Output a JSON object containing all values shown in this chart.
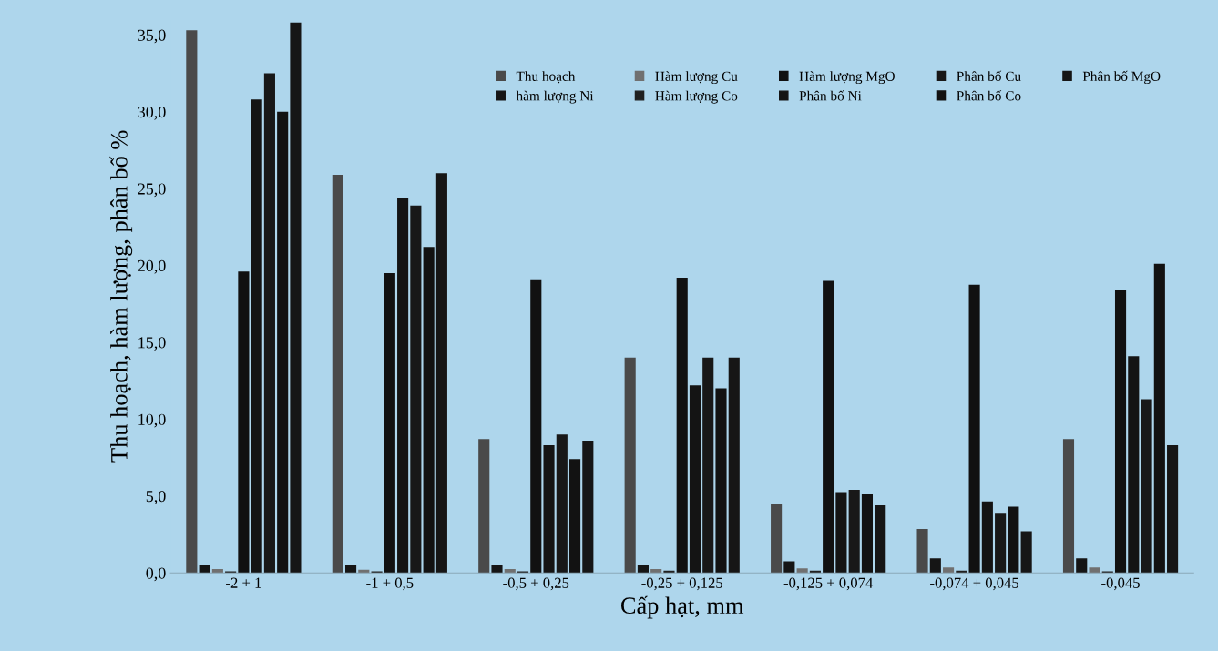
{
  "chart_data": {
    "type": "bar",
    "xlabel": "Cấp hạt, mm",
    "ylabel": "Thu hoạch, hàm lượng, phân bố %",
    "categories": [
      "-2 + 1",
      "-1 + 0,5",
      "-0,5 + 0,25",
      "-0,25 + 0,125",
      "-0,125 + 0,074",
      "-0,074 + 0,045",
      "-0,045"
    ],
    "series": [
      {
        "name": "Thu hoạch",
        "color": "#4a4a4a",
        "values": [
          35.3,
          25.9,
          8.7,
          14.0,
          4.5,
          2.85,
          8.7
        ]
      },
      {
        "name": "hàm lượng Ni",
        "color": "#151515",
        "values": [
          0.5,
          0.5,
          0.5,
          0.55,
          0.75,
          0.95,
          0.95
        ]
      },
      {
        "name": "Hàm lượng Cu",
        "color": "#707070",
        "values": [
          0.25,
          0.2,
          0.25,
          0.25,
          0.3,
          0.35,
          0.35
        ]
      },
      {
        "name": "Hàm lượng Co",
        "color": "#202020",
        "values": [
          0.1,
          0.1,
          0.1,
          0.15,
          0.15,
          0.15,
          0.1
        ]
      },
      {
        "name": "Hàm lượng MgO",
        "color": "#111111",
        "values": [
          19.6,
          19.5,
          19.1,
          19.2,
          19.0,
          18.75,
          18.4
        ]
      },
      {
        "name": "Phân bố Ni",
        "color": "#141414",
        "values": [
          30.8,
          24.4,
          8.3,
          12.2,
          5.25,
          4.65,
          14.1
        ]
      },
      {
        "name": "Phân bố Cu",
        "color": "#181818",
        "values": [
          32.5,
          23.9,
          9.0,
          14.0,
          5.4,
          3.9,
          11.3
        ]
      },
      {
        "name": "Phân bố Co",
        "color": "#121212",
        "values": [
          30.0,
          21.2,
          7.4,
          12.0,
          5.1,
          4.3,
          20.1
        ]
      },
      {
        "name": "Phân bố MgO",
        "color": "#161616",
        "values": [
          35.8,
          26.0,
          8.6,
          14.0,
          4.4,
          2.7,
          8.3
        ]
      }
    ],
    "ylim": [
      0,
      36
    ],
    "yticks": [
      {
        "value": 0,
        "label": "0,0"
      },
      {
        "value": 5,
        "label": "5,0"
      },
      {
        "value": 10,
        "label": "10,0"
      },
      {
        "value": 15,
        "label": "15,0"
      },
      {
        "value": 20,
        "label": "20,0"
      },
      {
        "value": 25,
        "label": "25,0"
      },
      {
        "value": 30,
        "label": "30,0"
      },
      {
        "value": 35,
        "label": "35,0"
      }
    ],
    "legend": "top right"
  }
}
